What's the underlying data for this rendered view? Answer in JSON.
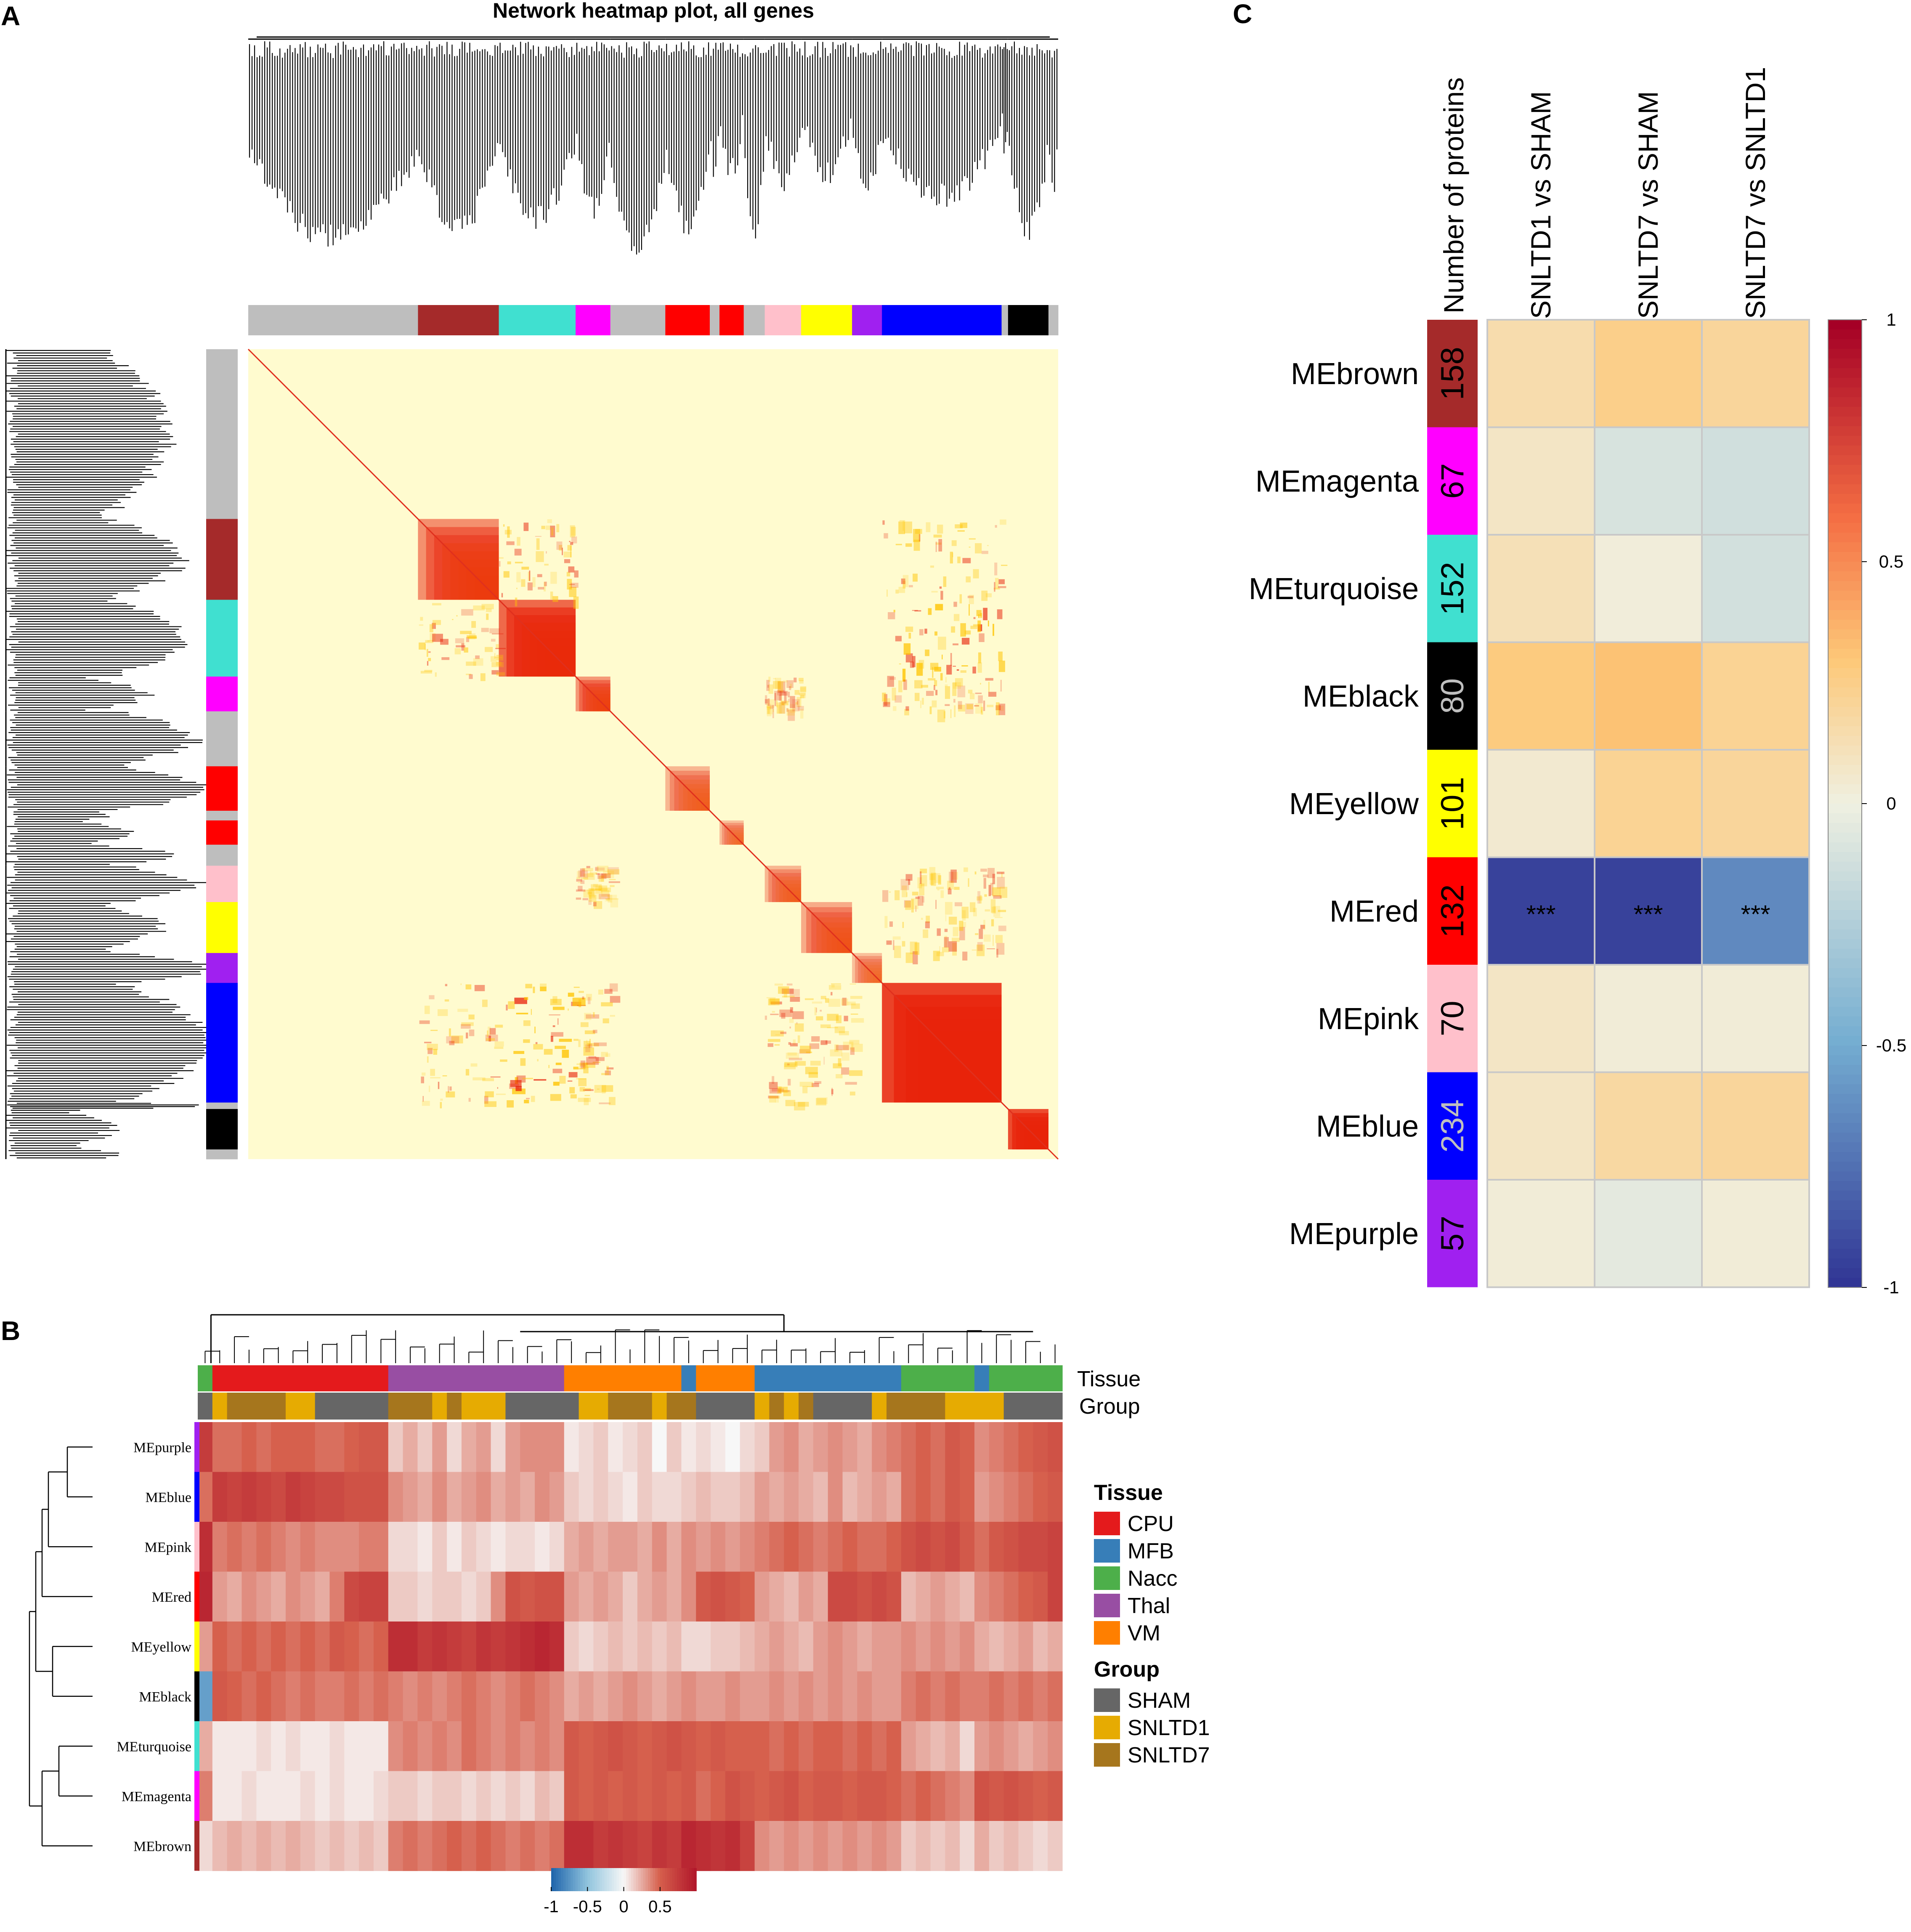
{
  "panel_labels": {
    "a": "A",
    "b": "B",
    "c": "C"
  },
  "colors": {
    "grey": "#bebebe",
    "brown": "#a52a2a",
    "turquoise": "#40e0d0",
    "magenta": "#ff00ff",
    "red": "#ff0000",
    "pink": "#ffc0cb",
    "yellow": "#ffff00",
    "purple": "#a020f0",
    "blue": "#0000ff",
    "black": "#000000",
    "heat_bg": "#fffbcf",
    "cpu": "#e41a1c",
    "mfb": "#377eb8",
    "nacc": "#4daf4a",
    "thal": "#984ea3",
    "vm": "#ff7f00",
    "sham": "#666666",
    "snltd1": "#e6ab02",
    "snltd7": "#a6761d"
  },
  "chart_data": [
    {
      "panel": "A",
      "type": "heatmap",
      "title": "Network heatmap plot, all genes",
      "module_order": [
        "grey",
        "brown",
        "turquoise",
        "magenta",
        "grey",
        "red",
        "grey",
        "red",
        "grey",
        "pink",
        "yellow",
        "purple",
        "blue",
        "grey",
        "black",
        "grey"
      ],
      "module_fractions": [
        0.21,
        0.1,
        0.095,
        0.043,
        0.068,
        0.055,
        0.012,
        0.03,
        0.026,
        0.045,
        0.063,
        0.037,
        0.148,
        0.008,
        0.05,
        0.012
      ],
      "diagonal": true
    },
    {
      "panel": "B",
      "type": "heatmap",
      "row_labels": [
        "MEpurple",
        "MEblue",
        "MEpink",
        "MEred",
        "MEyellow",
        "MEblack",
        "MEturquoise",
        "MEmagenta",
        "MEbrown"
      ],
      "row_colors": [
        "#a020f0",
        "#0000ff",
        "#ffc0cb",
        "#ff0000",
        "#ffff00",
        "#000000",
        "#40e0d0",
        "#ff00ff",
        "#a52a2a"
      ],
      "annotation_labels": [
        "Tissue",
        "Group"
      ],
      "tissue_sequence": [
        "Nacc",
        "CPU",
        "CPU",
        "CPU",
        "CPU",
        "CPU",
        "CPU",
        "CPU",
        "CPU",
        "CPU",
        "CPU",
        "CPU",
        "CPU",
        "Thal",
        "Thal",
        "Thal",
        "Thal",
        "Thal",
        "Thal",
        "Thal",
        "Thal",
        "Thal",
        "Thal",
        "Thal",
        "Thal",
        "VM",
        "VM",
        "VM",
        "VM",
        "VM",
        "VM",
        "VM",
        "VM",
        "MFB",
        "VM",
        "VM",
        "VM",
        "VM",
        "MFB",
        "MFB",
        "MFB",
        "MFB",
        "MFB",
        "MFB",
        "MFB",
        "MFB",
        "MFB",
        "MFB",
        "Nacc",
        "Nacc",
        "Nacc",
        "Nacc",
        "Nacc",
        "MFB",
        "Nacc",
        "Nacc",
        "Nacc",
        "Nacc",
        "Nacc"
      ],
      "group_sequence": [
        "SHAM",
        "SNLTD1",
        "SNLTD7",
        "SNLTD7",
        "SNLTD7",
        "SNLTD7",
        "SNLTD1",
        "SNLTD1",
        "SHAM",
        "SHAM",
        "SHAM",
        "SHAM",
        "SHAM",
        "SNLTD7",
        "SNLTD7",
        "SNLTD7",
        "SNLTD1",
        "SNLTD7",
        "SNLTD1",
        "SNLTD1",
        "SNLTD1",
        "SHAM",
        "SHAM",
        "SHAM",
        "SHAM",
        "SHAM",
        "SNLTD1",
        "SNLTD1",
        "SNLTD7",
        "SNLTD7",
        "SNLTD7",
        "SNLTD1",
        "SNLTD7",
        "SNLTD7",
        "SHAM",
        "SHAM",
        "SHAM",
        "SHAM",
        "SNLTD1",
        "SNLTD7",
        "SNLTD1",
        "SNLTD7",
        "SHAM",
        "SHAM",
        "SHAM",
        "SHAM",
        "SNLTD1",
        "SNLTD7",
        "SNLTD7",
        "SNLTD7",
        "SNLTD7",
        "SNLTD1",
        "SNLTD1",
        "SNLTD1",
        "SNLTD1",
        "SHAM",
        "SHAM",
        "SHAM",
        "SHAM"
      ],
      "values": [
        [
          0.75,
          0.45,
          0.45,
          0.5,
          0.45,
          0.5,
          0.5,
          0.5,
          0.45,
          0.45,
          0.5,
          0.55,
          0.55,
          0.15,
          0.25,
          0.15,
          0.3,
          0.1,
          0.25,
          0.3,
          0.1,
          0.3,
          0.35,
          0.35,
          0.35,
          0.05,
          0.1,
          0.15,
          0.05,
          0.1,
          0.15,
          0.0,
          0.15,
          0.05,
          0.1,
          0.05,
          0.0,
          0.1,
          0.15,
          0.3,
          0.35,
          0.25,
          0.3,
          0.35,
          0.3,
          0.25,
          0.35,
          0.4,
          0.45,
          0.5,
          0.45,
          0.55,
          0.5,
          0.35,
          0.4,
          0.45,
          0.5,
          0.55,
          0.6
        ],
        [
          0.45,
          0.75,
          0.7,
          0.75,
          0.7,
          0.65,
          0.75,
          0.7,
          0.65,
          0.65,
          0.6,
          0.6,
          0.6,
          0.35,
          0.3,
          0.25,
          0.35,
          0.25,
          0.3,
          0.35,
          0.25,
          0.3,
          0.25,
          0.35,
          0.3,
          0.15,
          0.1,
          0.15,
          0.1,
          0.05,
          0.15,
          0.1,
          0.1,
          0.15,
          0.2,
          0.15,
          0.15,
          0.2,
          0.3,
          0.25,
          0.3,
          0.25,
          0.2,
          0.35,
          0.2,
          0.25,
          0.3,
          0.25,
          0.45,
          0.5,
          0.45,
          0.55,
          0.5,
          0.3,
          0.35,
          0.4,
          0.45,
          0.5,
          0.55
        ],
        [
          0.85,
          0.4,
          0.45,
          0.4,
          0.45,
          0.4,
          0.35,
          0.4,
          0.35,
          0.35,
          0.35,
          0.4,
          0.4,
          0.1,
          0.1,
          0.05,
          0.15,
          0.05,
          0.15,
          0.1,
          0.05,
          0.1,
          0.1,
          0.05,
          0.1,
          0.25,
          0.3,
          0.25,
          0.3,
          0.3,
          0.25,
          0.35,
          0.25,
          0.35,
          0.3,
          0.35,
          0.3,
          0.35,
          0.4,
          0.45,
          0.5,
          0.45,
          0.4,
          0.45,
          0.5,
          0.45,
          0.45,
          0.5,
          0.6,
          0.65,
          0.6,
          0.65,
          0.55,
          0.45,
          0.55,
          0.6,
          0.65,
          0.65,
          0.7
        ],
        [
          0.9,
          0.3,
          0.25,
          0.35,
          0.3,
          0.25,
          0.35,
          0.3,
          0.25,
          0.4,
          0.65,
          0.7,
          0.7,
          0.15,
          0.15,
          0.1,
          0.15,
          0.15,
          0.1,
          0.15,
          0.35,
          0.6,
          0.55,
          0.6,
          0.6,
          0.3,
          0.25,
          0.3,
          0.25,
          0.15,
          0.25,
          0.3,
          0.25,
          0.35,
          0.55,
          0.6,
          0.55,
          0.5,
          0.3,
          0.25,
          0.2,
          0.3,
          0.25,
          0.65,
          0.65,
          0.6,
          0.65,
          0.6,
          0.2,
          0.25,
          0.3,
          0.25,
          0.2,
          0.35,
          0.4,
          0.45,
          0.5,
          0.55,
          0.7
        ],
        [
          0.3,
          0.5,
          0.45,
          0.5,
          0.45,
          0.5,
          0.45,
          0.5,
          0.45,
          0.55,
          0.5,
          0.45,
          0.5,
          0.85,
          0.85,
          0.75,
          0.8,
          0.75,
          0.7,
          0.8,
          0.75,
          0.8,
          0.85,
          0.9,
          0.85,
          0.15,
          0.1,
          0.15,
          0.2,
          0.15,
          0.2,
          0.15,
          0.2,
          0.1,
          0.1,
          0.15,
          0.15,
          0.2,
          0.25,
          0.3,
          0.25,
          0.2,
          0.3,
          0.35,
          0.3,
          0.25,
          0.3,
          0.3,
          0.35,
          0.3,
          0.35,
          0.3,
          0.35,
          0.25,
          0.2,
          0.25,
          0.3,
          0.2,
          0.25
        ],
        [
          -0.7,
          0.55,
          0.5,
          0.45,
          0.5,
          0.45,
          0.4,
          0.45,
          0.4,
          0.4,
          0.45,
          0.4,
          0.45,
          0.4,
          0.35,
          0.4,
          0.35,
          0.4,
          0.45,
          0.4,
          0.35,
          0.4,
          0.45,
          0.4,
          0.35,
          0.25,
          0.3,
          0.25,
          0.3,
          0.35,
          0.3,
          0.25,
          0.3,
          0.35,
          0.3,
          0.3,
          0.35,
          0.3,
          0.3,
          0.35,
          0.3,
          0.35,
          0.3,
          0.35,
          0.3,
          0.35,
          0.3,
          0.3,
          0.4,
          0.45,
          0.4,
          0.45,
          0.4,
          0.4,
          0.45,
          0.4,
          0.45,
          0.4,
          0.45
        ],
        [
          0.25,
          0.05,
          0.05,
          0.05,
          0.1,
          0.05,
          0.1,
          0.05,
          0.05,
          0.1,
          0.05,
          0.05,
          0.05,
          0.35,
          0.4,
          0.35,
          0.4,
          0.35,
          0.45,
          0.4,
          0.35,
          0.4,
          0.35,
          0.4,
          0.35,
          0.55,
          0.5,
          0.55,
          0.6,
          0.55,
          0.5,
          0.55,
          0.6,
          0.55,
          0.5,
          0.55,
          0.5,
          0.5,
          0.5,
          0.45,
          0.5,
          0.45,
          0.5,
          0.5,
          0.45,
          0.5,
          0.45,
          0.5,
          0.3,
          0.25,
          0.2,
          0.25,
          0.1,
          0.3,
          0.35,
          0.3,
          0.25,
          0.3,
          0.35
        ],
        [
          0.4,
          0.05,
          0.05,
          0.1,
          0.05,
          0.05,
          0.05,
          0.1,
          0.05,
          0.1,
          0.05,
          0.05,
          0.1,
          0.15,
          0.15,
          0.1,
          0.15,
          0.15,
          0.1,
          0.15,
          0.1,
          0.15,
          0.1,
          0.2,
          0.15,
          0.55,
          0.5,
          0.55,
          0.5,
          0.55,
          0.5,
          0.55,
          0.5,
          0.55,
          0.45,
          0.5,
          0.6,
          0.55,
          0.5,
          0.55,
          0.6,
          0.5,
          0.55,
          0.55,
          0.5,
          0.55,
          0.55,
          0.5,
          0.45,
          0.5,
          0.45,
          0.4,
          0.35,
          0.6,
          0.55,
          0.6,
          0.55,
          0.5,
          0.55
        ],
        [
          0.1,
          0.2,
          0.25,
          0.2,
          0.25,
          0.2,
          0.25,
          0.2,
          0.15,
          0.2,
          0.15,
          0.2,
          0.15,
          0.4,
          0.45,
          0.4,
          0.45,
          0.5,
          0.45,
          0.5,
          0.45,
          0.4,
          0.45,
          0.4,
          0.45,
          0.85,
          0.85,
          0.75,
          0.8,
          0.75,
          0.7,
          0.8,
          0.75,
          0.9,
          0.85,
          0.8,
          0.85,
          0.7,
          0.35,
          0.3,
          0.35,
          0.3,
          0.35,
          0.3,
          0.35,
          0.3,
          0.35,
          0.3,
          0.15,
          0.2,
          0.15,
          0.2,
          0.1,
          0.25,
          0.15,
          0.2,
          0.15,
          0.1,
          0.15
        ]
      ],
      "legend": {
        "tissue_title": "Tissue",
        "tissue": [
          {
            "label": "CPU",
            "color": "#e41a1c"
          },
          {
            "label": "MFB",
            "color": "#377eb8"
          },
          {
            "label": "Nacc",
            "color": "#4daf4a"
          },
          {
            "label": "Thal",
            "color": "#984ea3"
          },
          {
            "label": "VM",
            "color": "#ff7f00"
          }
        ],
        "group_title": "Group",
        "group": [
          {
            "label": "SHAM",
            "color": "#666666"
          },
          {
            "label": "SNLTD1",
            "color": "#e6ab02"
          },
          {
            "label": "SNLTD7",
            "color": "#a6761d"
          }
        ]
      },
      "colorbar": {
        "ticks": [
          "-1",
          "-0.5",
          "0",
          "0.5"
        ],
        "range": [
          -1,
          1
        ]
      }
    },
    {
      "panel": "C",
      "type": "heatmap",
      "row_labels": [
        "MEbrown",
        "MEmagenta",
        "MEturquoise",
        "MEblack",
        "MEyellow",
        "MEred",
        "MEpink",
        "MEblue",
        "MEpurple"
      ],
      "protein_counts": [
        "158",
        "67",
        "152",
        "80",
        "101",
        "132",
        "70",
        "234",
        "57"
      ],
      "protein_colors": [
        "#a52a2a",
        "#ff00ff",
        "#40e0d0",
        "#000000",
        "#ffff00",
        "#ff0000",
        "#ffc0cb",
        "#0000ff",
        "#a020f0"
      ],
      "count_text_colors": [
        "#000000",
        "#000000",
        "#000000",
        "#bfbfbf",
        "#000000",
        "#000000",
        "#000000",
        "#bfbfbf",
        "#000000"
      ],
      "count_header": "Number of proteins",
      "columns": [
        "SNLTD1 vs SHAM",
        "SNLTD7 vs SHAM",
        "SNLTD7 vs SNLTD1"
      ],
      "values": [
        [
          0.15,
          0.25,
          0.2
        ],
        [
          0.08,
          -0.1,
          -0.13
        ],
        [
          0.12,
          0.02,
          -0.12
        ],
        [
          0.28,
          0.32,
          0.22
        ],
        [
          0.05,
          0.22,
          0.2
        ],
        [
          -0.95,
          -0.95,
          -0.65
        ],
        [
          0.08,
          0.03,
          0.03
        ],
        [
          0.08,
          0.18,
          0.2
        ],
        [
          0.03,
          -0.05,
          0.03
        ]
      ],
      "annotations": [
        [
          "",
          "",
          ""
        ],
        [
          "",
          "",
          ""
        ],
        [
          "",
          "",
          ""
        ],
        [
          "",
          "",
          ""
        ],
        [
          "",
          "",
          ""
        ],
        [
          "***",
          "***",
          "***"
        ],
        [
          "",
          "",
          ""
        ],
        [
          "",
          "",
          ""
        ],
        [
          "",
          "",
          ""
        ]
      ],
      "colorbar": {
        "ticks": [
          "1",
          "0.5",
          "0",
          "-0.5",
          "-1"
        ],
        "range": [
          -1,
          1
        ]
      }
    }
  ]
}
